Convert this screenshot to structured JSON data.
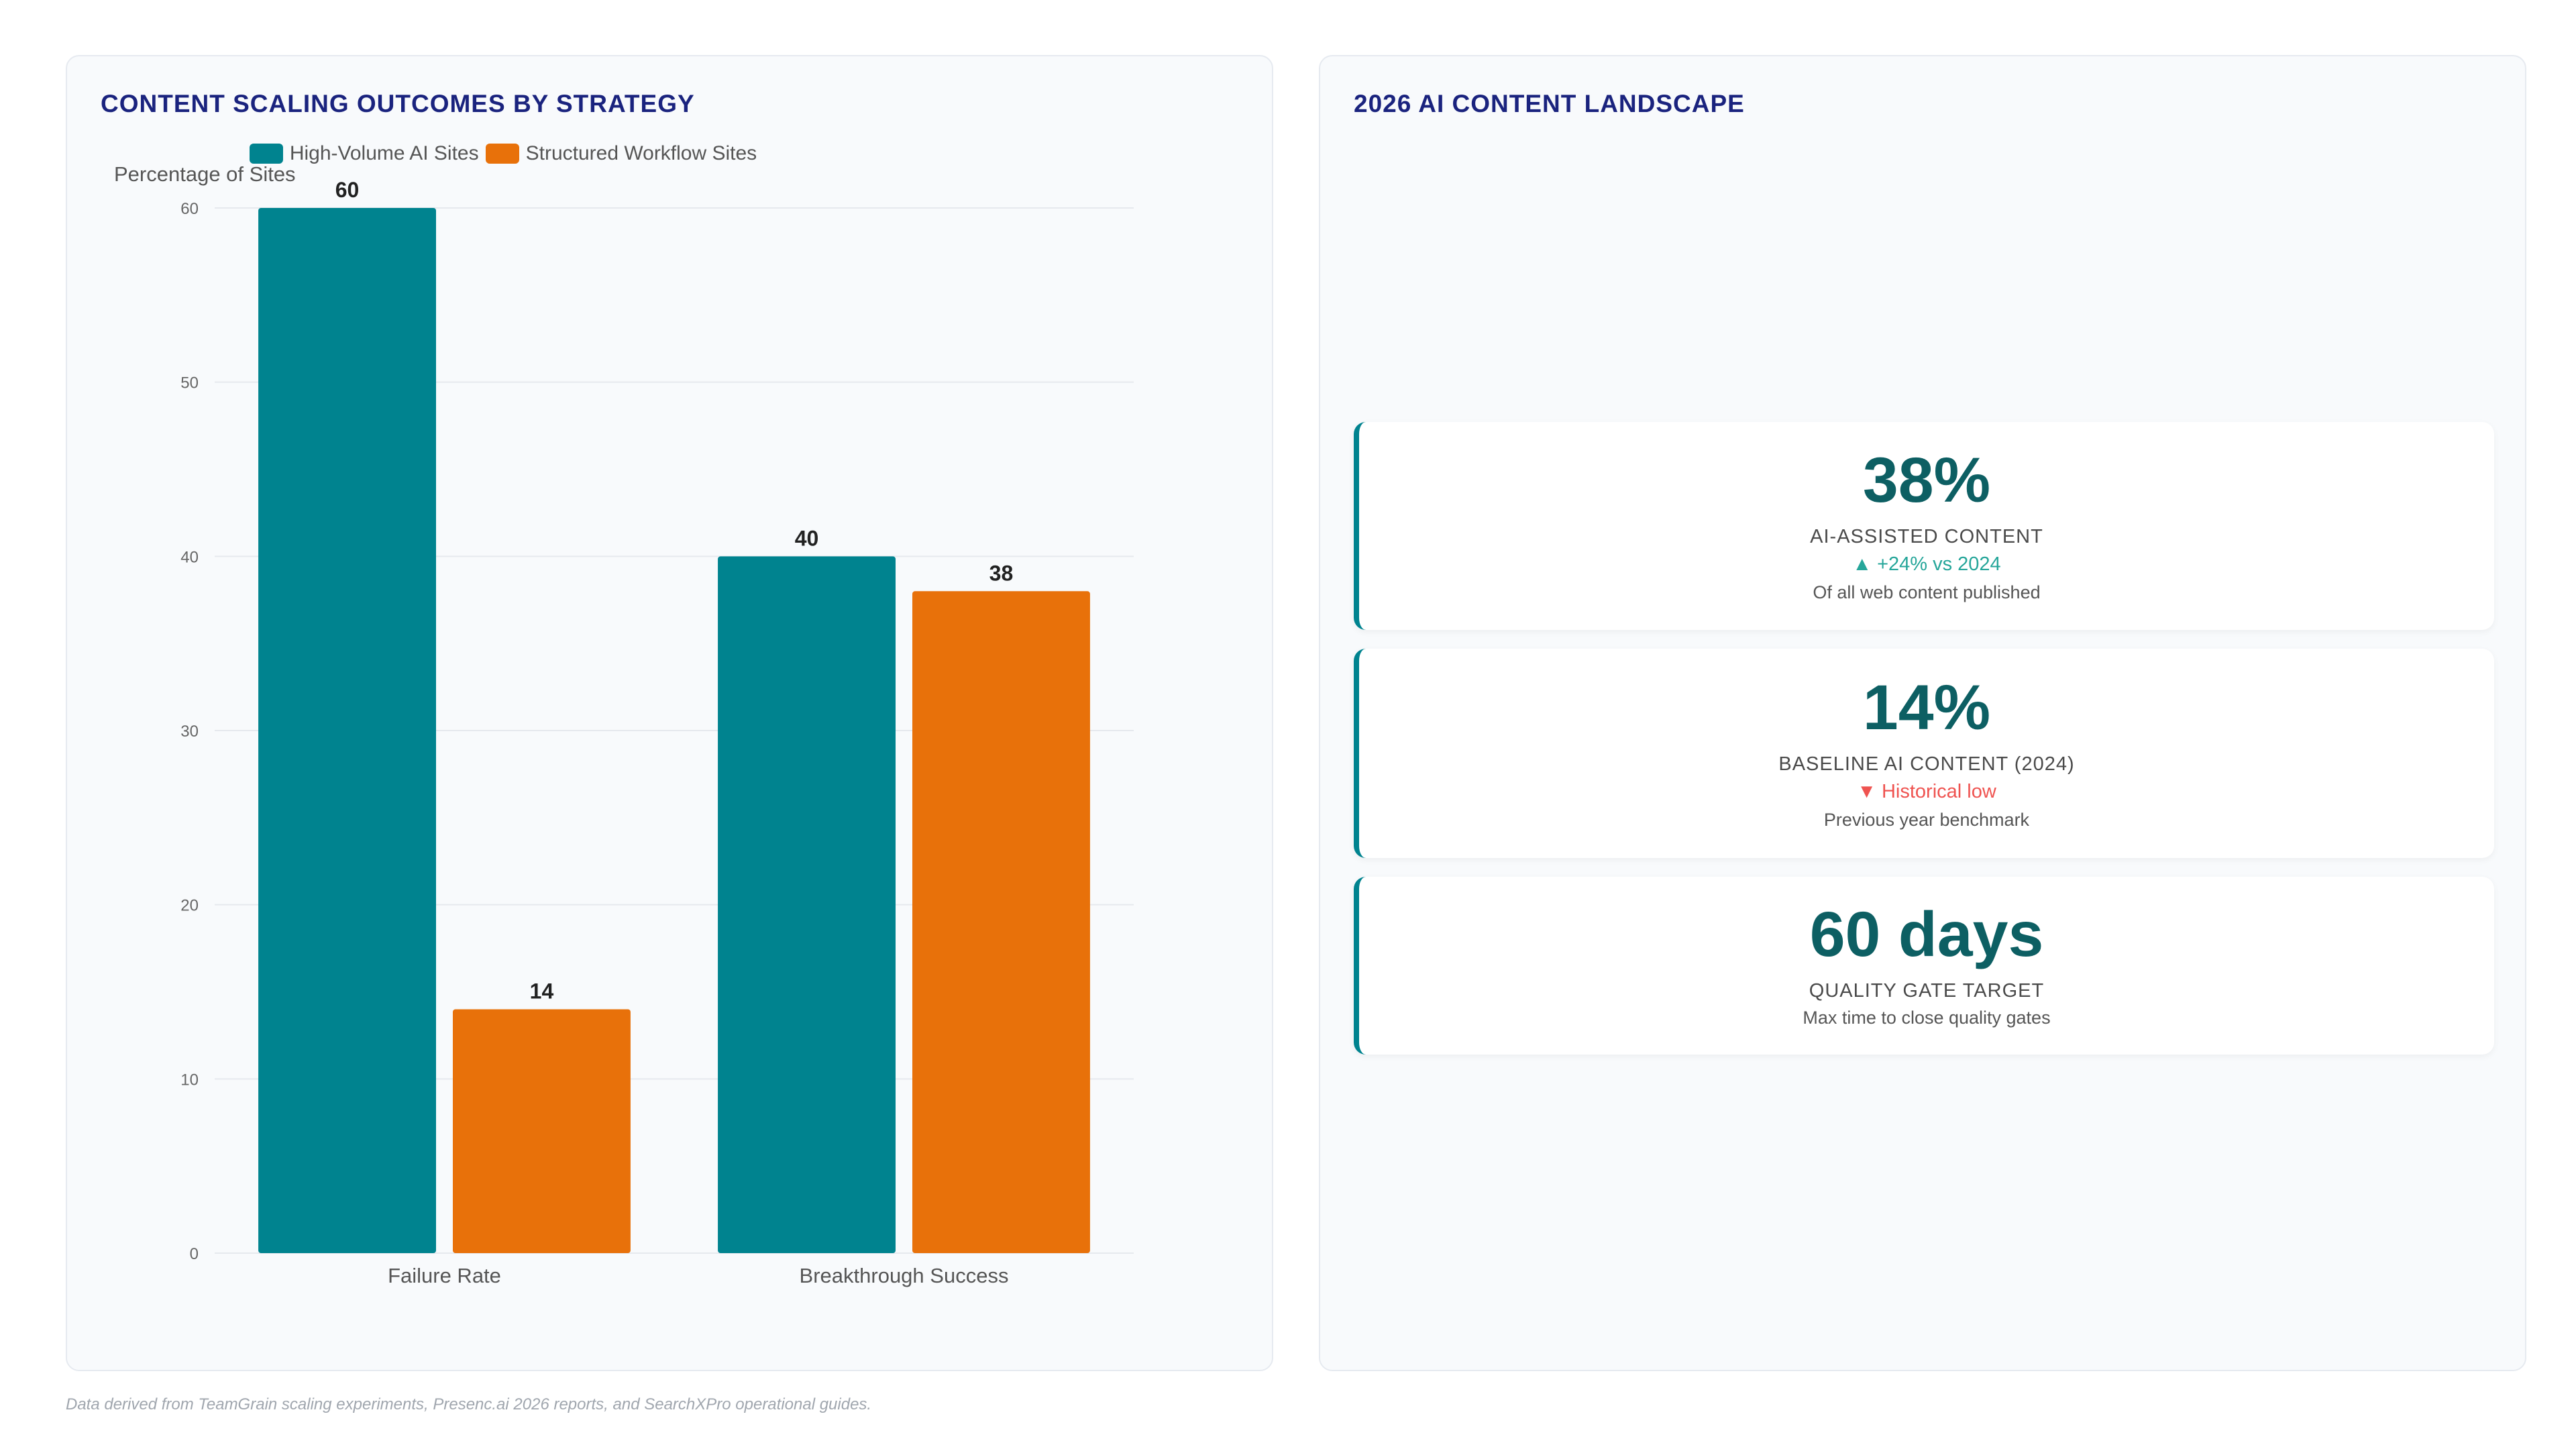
{
  "left_panel": {
    "title": "CONTENT SCALING OUTCOMES BY STRATEGY"
  },
  "right_panel": {
    "title": "2026 AI CONTENT LANDSCAPE"
  },
  "chart_data": {
    "type": "bar",
    "title": "CONTENT SCALING OUTCOMES BY STRATEGY",
    "ylabel": "Percentage of Sites",
    "xlabel": "",
    "categories": [
      "Failure Rate",
      "Breakthrough Success"
    ],
    "series": [
      {
        "name": "High-Volume AI Sites",
        "values": [
          60,
          40
        ],
        "color": "#00838f"
      },
      {
        "name": "Structured Workflow Sites",
        "values": [
          14,
          38
        ],
        "color": "#e8710a"
      }
    ],
    "ylim": [
      0,
      60
    ],
    "yticks": [
      0,
      10,
      20,
      30,
      40,
      50,
      60
    ],
    "grid": true,
    "legend": "top",
    "data_labels": true
  },
  "stats": [
    {
      "value": "38%",
      "label": "AI-ASSISTED CONTENT",
      "trend": "▲ +24% vs 2024",
      "trend_dir": "up",
      "sub": "Of all web content published"
    },
    {
      "value": "14%",
      "label": "BASELINE AI CONTENT (2024)",
      "trend": "▼ Historical low",
      "trend_dir": "down",
      "sub": "Previous year benchmark"
    },
    {
      "value": "60 days",
      "label": "QUALITY GATE TARGET",
      "sub": "Max time to close quality gates"
    }
  ],
  "footer": "Data derived from TeamGrain scaling experiments, Presenc.ai 2026 reports, and SearchXPro operational guides."
}
